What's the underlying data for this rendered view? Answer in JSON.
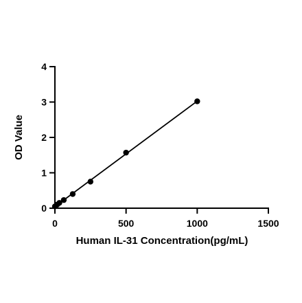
{
  "chart_data": {
    "type": "scatter",
    "xlabel": "Human IL-31 Concentration(pg/mL)",
    "ylabel": "OD Value",
    "xlim": [
      0,
      1500
    ],
    "ylim": [
      0,
      4
    ],
    "x_ticks": [
      "0",
      "500",
      "1000",
      "1500"
    ],
    "y_ticks": [
      "0",
      "1",
      "2",
      "3",
      "4"
    ],
    "grid": false,
    "series": [
      {
        "x": [
          0,
          15.6,
          31.25,
          62.5,
          125,
          250,
          500,
          1000
        ],
        "y": [
          0.05,
          0.1,
          0.15,
          0.23,
          0.4,
          0.75,
          1.57,
          3.02
        ],
        "fit_line": true
      }
    ]
  }
}
